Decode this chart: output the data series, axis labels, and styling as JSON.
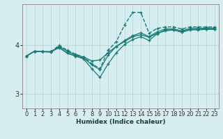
{
  "xlabel": "Humidex (Indice chaleur)",
  "bg_color": "#d6eef0",
  "grid_color": "#b8d8dc",
  "line_color": "#1a7a78",
  "xlim": [
    -0.5,
    23.5
  ],
  "ylim": [
    2.7,
    4.85
  ],
  "yticks": [
    3,
    4
  ],
  "xticks": [
    0,
    1,
    2,
    3,
    4,
    5,
    6,
    7,
    8,
    9,
    10,
    11,
    12,
    13,
    14,
    15,
    16,
    17,
    18,
    19,
    20,
    21,
    22,
    23
  ],
  "lines": [
    {
      "y": [
        3.78,
        3.88,
        3.87,
        3.86,
        3.98,
        3.88,
        3.8,
        3.76,
        3.68,
        3.7,
        3.85,
        3.98,
        4.08,
        4.18,
        4.22,
        4.17,
        4.25,
        4.3,
        4.32,
        4.28,
        4.33,
        4.33,
        4.34,
        4.34
      ],
      "style": "-",
      "lw": 1.0
    },
    {
      "y": [
        3.78,
        3.88,
        3.87,
        3.87,
        4.0,
        3.9,
        3.82,
        3.76,
        3.62,
        3.52,
        3.9,
        4.08,
        4.42,
        4.68,
        4.68,
        4.25,
        4.35,
        4.38,
        4.38,
        4.34,
        4.38,
        4.38,
        4.38,
        4.38
      ],
      "style": "--",
      "lw": 1.0
    },
    {
      "y": [
        3.78,
        3.88,
        3.87,
        3.87,
        3.96,
        3.84,
        3.78,
        3.74,
        3.6,
        3.5,
        3.8,
        3.98,
        4.1,
        4.2,
        4.26,
        4.18,
        4.28,
        4.34,
        4.34,
        4.3,
        4.35,
        4.35,
        4.36,
        4.36
      ],
      "style": "-",
      "lw": 0.9
    },
    {
      "y": [
        3.78,
        3.88,
        3.87,
        3.87,
        3.95,
        3.84,
        3.78,
        3.72,
        3.52,
        3.34,
        3.62,
        3.85,
        4.02,
        4.12,
        4.18,
        4.1,
        4.24,
        4.32,
        4.32,
        4.27,
        4.32,
        4.32,
        4.33,
        4.33
      ],
      "style": "-",
      "lw": 0.9
    }
  ]
}
